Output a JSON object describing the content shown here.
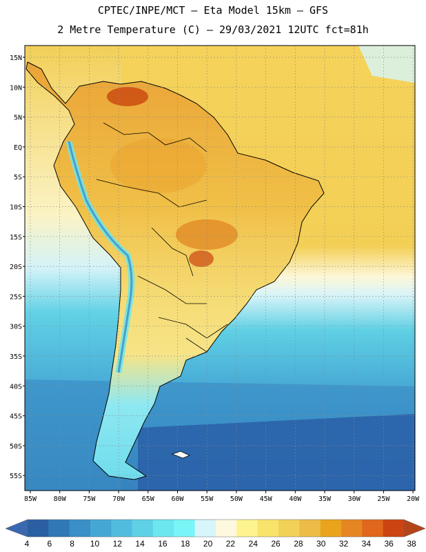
{
  "header": {
    "line1": "CPTEC/INPE/MCT –  Eta Model 15km – GFS",
    "line2": "2 Metre Temperature (C) – 29/03/2021 12UTC fct=81h"
  },
  "map": {
    "lat_labels": [
      "15N",
      "10N",
      "5N",
      "EQ",
      "5S",
      "10S",
      "15S",
      "20S",
      "25S",
      "30S",
      "35S",
      "40S",
      "45S",
      "50S",
      "55S"
    ],
    "lon_labels": [
      "85W",
      "80W",
      "75W",
      "70W",
      "65W",
      "60W",
      "55W",
      "50W",
      "45W",
      "40W",
      "35W",
      "30W",
      "25W",
      "20W"
    ]
  },
  "colorbar": {
    "ticks": [
      "4",
      "6",
      "8",
      "10",
      "12",
      "14",
      "16",
      "18",
      "20",
      "22",
      "24",
      "26",
      "28",
      "30",
      "32",
      "34",
      "36",
      "38"
    ],
    "colors": [
      "#2a5fa3",
      "#3078b6",
      "#3a8fc6",
      "#45a7d4",
      "#52bcdf",
      "#5fd1e6",
      "#6ce6ef",
      "#7af5f7",
      "#d6f6fb",
      "#fdf8de",
      "#fdf38f",
      "#f8e46b",
      "#f2d158",
      "#ecbc46",
      "#e9a31c",
      "#e58623",
      "#e0671c",
      "#cc4412"
    ],
    "end_left": "#3a68b0",
    "end_right": "#b5441b"
  }
}
